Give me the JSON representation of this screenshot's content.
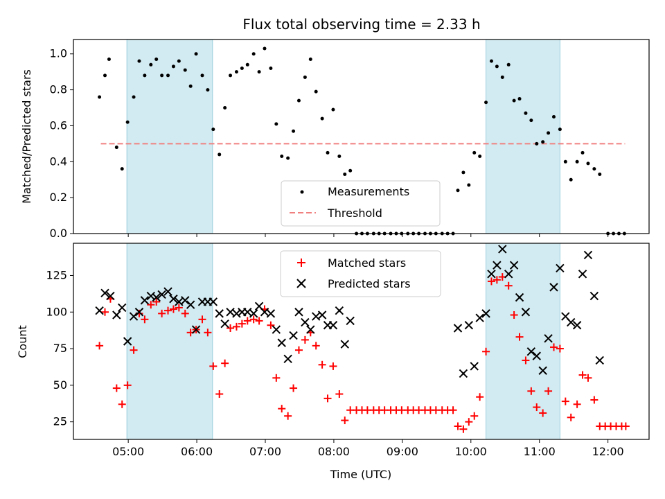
{
  "chart_data": [
    {
      "type": "scatter",
      "title": "Flux total observing time = 2.33 h",
      "ylabel": "Matched/Predicted stars",
      "xlabel": "",
      "xlim_hours": [
        4.2,
        12.6
      ],
      "ylim": [
        0,
        1.08
      ],
      "yticks": [
        0.0,
        0.2,
        0.4,
        0.6,
        0.8,
        1.0
      ],
      "ytick_labels": [
        "0.0",
        "0.2",
        "0.4",
        "0.6",
        "0.8",
        "1.0"
      ],
      "shaded_spans_hours": [
        [
          4.98,
          6.23
        ],
        [
          10.22,
          11.3
        ]
      ],
      "legend": [
        "Measurements",
        "Threshold"
      ],
      "threshold": {
        "value": 0.5,
        "x_range_hours": [
          4.6,
          12.25
        ],
        "color": "#f08080"
      },
      "measurements": {
        "color": "#000000",
        "points": [
          [
            4.58,
            0.76
          ],
          [
            4.66,
            0.88
          ],
          [
            4.72,
            0.97
          ],
          [
            4.83,
            0.48
          ],
          [
            4.91,
            0.36
          ],
          [
            4.99,
            0.62
          ],
          [
            5.08,
            0.76
          ],
          [
            5.16,
            0.96
          ],
          [
            5.24,
            0.88
          ],
          [
            5.33,
            0.94
          ],
          [
            5.41,
            0.97
          ],
          [
            5.49,
            0.88
          ],
          [
            5.58,
            0.88
          ],
          [
            5.66,
            0.93
          ],
          [
            5.74,
            0.96
          ],
          [
            5.83,
            0.91
          ],
          [
            5.91,
            0.82
          ],
          [
            5.99,
            1.0
          ],
          [
            6.08,
            0.88
          ],
          [
            6.16,
            0.8
          ],
          [
            6.24,
            0.58
          ],
          [
            6.33,
            0.44
          ],
          [
            6.41,
            0.7
          ],
          [
            6.49,
            0.88
          ],
          [
            6.58,
            0.9
          ],
          [
            6.66,
            0.92
          ],
          [
            6.74,
            0.94
          ],
          [
            6.83,
            1.0
          ],
          [
            6.91,
            0.9
          ],
          [
            6.99,
            1.03
          ],
          [
            7.08,
            0.92
          ],
          [
            7.16,
            0.61
          ],
          [
            7.24,
            0.43
          ],
          [
            7.33,
            0.42
          ],
          [
            7.41,
            0.57
          ],
          [
            7.49,
            0.74
          ],
          [
            7.58,
            0.87
          ],
          [
            7.66,
            0.97
          ],
          [
            7.74,
            0.79
          ],
          [
            7.83,
            0.64
          ],
          [
            7.91,
            0.45
          ],
          [
            7.99,
            0.69
          ],
          [
            8.08,
            0.43
          ],
          [
            8.16,
            0.33
          ],
          [
            8.24,
            0.35
          ],
          [
            8.33,
            0
          ],
          [
            8.41,
            0
          ],
          [
            8.49,
            0
          ],
          [
            8.58,
            0
          ],
          [
            8.66,
            0
          ],
          [
            8.74,
            0
          ],
          [
            8.83,
            0
          ],
          [
            8.91,
            0
          ],
          [
            8.99,
            0
          ],
          [
            9.08,
            0
          ],
          [
            9.16,
            0
          ],
          [
            9.24,
            0
          ],
          [
            9.33,
            0
          ],
          [
            9.41,
            0
          ],
          [
            9.49,
            0
          ],
          [
            9.58,
            0
          ],
          [
            9.66,
            0
          ],
          [
            9.74,
            0
          ],
          [
            9.81,
            0.24
          ],
          [
            9.89,
            0.34
          ],
          [
            9.97,
            0.27
          ],
          [
            10.05,
            0.45
          ],
          [
            10.13,
            0.43
          ],
          [
            10.22,
            0.73
          ],
          [
            10.3,
            0.96
          ],
          [
            10.38,
            0.93
          ],
          [
            10.46,
            0.87
          ],
          [
            10.55,
            0.94
          ],
          [
            10.63,
            0.74
          ],
          [
            10.71,
            0.75
          ],
          [
            10.8,
            0.67
          ],
          [
            10.88,
            0.63
          ],
          [
            10.96,
            0.5
          ],
          [
            11.05,
            0.51
          ],
          [
            11.13,
            0.56
          ],
          [
            11.21,
            0.65
          ],
          [
            11.3,
            0.58
          ],
          [
            11.38,
            0.4
          ],
          [
            11.46,
            0.3
          ],
          [
            11.55,
            0.4
          ],
          [
            11.63,
            0.45
          ],
          [
            11.71,
            0.39
          ],
          [
            11.8,
            0.36
          ],
          [
            11.88,
            0.33
          ],
          [
            12.0,
            0
          ],
          [
            12.08,
            0
          ],
          [
            12.16,
            0
          ],
          [
            12.24,
            0
          ]
        ]
      }
    },
    {
      "type": "scatter",
      "title": "",
      "ylabel": "Count",
      "xlabel": "Time (UTC)",
      "xlim_hours": [
        4.2,
        12.6
      ],
      "ylim": [
        13,
        147
      ],
      "yticks": [
        25,
        50,
        75,
        100,
        125
      ],
      "ytick_labels": [
        "25",
        "50",
        "75",
        "100",
        "125"
      ],
      "xticks_hours": [
        5,
        6,
        7,
        8,
        9,
        10,
        11,
        12
      ],
      "xtick_labels": [
        "05:00",
        "06:00",
        "07:00",
        "08:00",
        "09:00",
        "10:00",
        "11:00",
        "12:00"
      ],
      "shaded_spans_hours": [
        [
          4.98,
          6.23
        ],
        [
          10.22,
          11.3
        ]
      ],
      "legend": [
        "Matched stars",
        "Predicted stars"
      ],
      "matched": {
        "color": "#ff0000",
        "points": [
          [
            4.58,
            77
          ],
          [
            4.66,
            100
          ],
          [
            4.74,
            109
          ],
          [
            4.83,
            48
          ],
          [
            4.91,
            37
          ],
          [
            4.99,
            50
          ],
          [
            5.08,
            74
          ],
          [
            5.16,
            99
          ],
          [
            5.24,
            95
          ],
          [
            5.33,
            105
          ],
          [
            5.41,
            107
          ],
          [
            5.49,
            99
          ],
          [
            5.58,
            101
          ],
          [
            5.66,
            102
          ],
          [
            5.74,
            103
          ],
          [
            5.83,
            99
          ],
          [
            5.91,
            86
          ],
          [
            5.99,
            88
          ],
          [
            6.08,
            95
          ],
          [
            6.16,
            86
          ],
          [
            6.24,
            63
          ],
          [
            6.33,
            44
          ],
          [
            6.41,
            65
          ],
          [
            6.49,
            89
          ],
          [
            6.58,
            90
          ],
          [
            6.66,
            92
          ],
          [
            6.74,
            94
          ],
          [
            6.83,
            95
          ],
          [
            6.91,
            94
          ],
          [
            6.99,
            102
          ],
          [
            7.08,
            91
          ],
          [
            7.16,
            55
          ],
          [
            7.24,
            34
          ],
          [
            7.33,
            29
          ],
          [
            7.41,
            48
          ],
          [
            7.49,
            74
          ],
          [
            7.58,
            81
          ],
          [
            7.66,
            86
          ],
          [
            7.74,
            77
          ],
          [
            7.83,
            64
          ],
          [
            7.91,
            41
          ],
          [
            7.99,
            63
          ],
          [
            8.08,
            44
          ],
          [
            8.16,
            26
          ],
          [
            8.24,
            33
          ],
          [
            8.33,
            33
          ],
          [
            8.41,
            33
          ],
          [
            8.49,
            33
          ],
          [
            8.58,
            33
          ],
          [
            8.66,
            33
          ],
          [
            8.74,
            33
          ],
          [
            8.83,
            33
          ],
          [
            8.91,
            33
          ],
          [
            8.99,
            33
          ],
          [
            9.08,
            33
          ],
          [
            9.16,
            33
          ],
          [
            9.24,
            33
          ],
          [
            9.33,
            33
          ],
          [
            9.41,
            33
          ],
          [
            9.49,
            33
          ],
          [
            9.58,
            33
          ],
          [
            9.66,
            33
          ],
          [
            9.74,
            33
          ],
          [
            9.81,
            22
          ],
          [
            9.89,
            20
          ],
          [
            9.97,
            25
          ],
          [
            10.05,
            29
          ],
          [
            10.13,
            42
          ],
          [
            10.22,
            73
          ],
          [
            10.3,
            121
          ],
          [
            10.38,
            122
          ],
          [
            10.46,
            124
          ],
          [
            10.55,
            118
          ],
          [
            10.63,
            98
          ],
          [
            10.71,
            83
          ],
          [
            10.8,
            67
          ],
          [
            10.88,
            46
          ],
          [
            10.96,
            35
          ],
          [
            11.05,
            31
          ],
          [
            11.13,
            46
          ],
          [
            11.21,
            76
          ],
          [
            11.3,
            75
          ],
          [
            11.38,
            39
          ],
          [
            11.46,
            28
          ],
          [
            11.55,
            37
          ],
          [
            11.63,
            57
          ],
          [
            11.71,
            55
          ],
          [
            11.8,
            40
          ],
          [
            11.88,
            22
          ],
          [
            11.96,
            22
          ],
          [
            12.04,
            22
          ],
          [
            12.12,
            22
          ],
          [
            12.2,
            22
          ],
          [
            12.26,
            22
          ]
        ]
      },
      "predicted": {
        "color": "#000000",
        "points": [
          [
            4.58,
            101
          ],
          [
            4.66,
            113
          ],
          [
            4.74,
            111
          ],
          [
            4.83,
            98
          ],
          [
            4.91,
            103
          ],
          [
            4.99,
            80
          ],
          [
            5.08,
            97
          ],
          [
            5.16,
            100
          ],
          [
            5.24,
            108
          ],
          [
            5.33,
            111
          ],
          [
            5.41,
            110
          ],
          [
            5.49,
            112
          ],
          [
            5.58,
            114
          ],
          [
            5.66,
            109
          ],
          [
            5.74,
            107
          ],
          [
            5.83,
            108
          ],
          [
            5.91,
            105
          ],
          [
            5.99,
            88
          ],
          [
            6.08,
            107
          ],
          [
            6.16,
            107
          ],
          [
            6.24,
            107
          ],
          [
            6.33,
            99
          ],
          [
            6.41,
            92
          ],
          [
            6.49,
            100
          ],
          [
            6.58,
            99
          ],
          [
            6.66,
            100
          ],
          [
            6.74,
            100
          ],
          [
            6.83,
            99
          ],
          [
            6.91,
            104
          ],
          [
            6.99,
            100
          ],
          [
            7.08,
            99
          ],
          [
            7.16,
            88
          ],
          [
            7.24,
            79
          ],
          [
            7.33,
            68
          ],
          [
            7.41,
            84
          ],
          [
            7.49,
            100
          ],
          [
            7.58,
            93
          ],
          [
            7.66,
            88
          ],
          [
            7.74,
            97
          ],
          [
            7.83,
            98
          ],
          [
            7.91,
            91
          ],
          [
            7.99,
            91
          ],
          [
            8.08,
            101
          ],
          [
            8.16,
            78
          ],
          [
            8.24,
            94
          ],
          [
            9.81,
            89
          ],
          [
            9.89,
            58
          ],
          [
            9.97,
            91
          ],
          [
            10.05,
            63
          ],
          [
            10.13,
            96
          ],
          [
            10.22,
            99
          ],
          [
            10.3,
            126
          ],
          [
            10.38,
            132
          ],
          [
            10.46,
            143
          ],
          [
            10.55,
            126
          ],
          [
            10.63,
            132
          ],
          [
            10.71,
            110
          ],
          [
            10.8,
            100
          ],
          [
            10.88,
            73
          ],
          [
            10.96,
            70
          ],
          [
            11.05,
            60
          ],
          [
            11.13,
            82
          ],
          [
            11.21,
            117
          ],
          [
            11.3,
            130
          ],
          [
            11.38,
            97
          ],
          [
            11.46,
            93
          ],
          [
            11.55,
            91
          ],
          [
            11.63,
            126
          ],
          [
            11.71,
            139
          ],
          [
            11.8,
            111
          ],
          [
            11.88,
            67
          ]
        ]
      }
    }
  ]
}
